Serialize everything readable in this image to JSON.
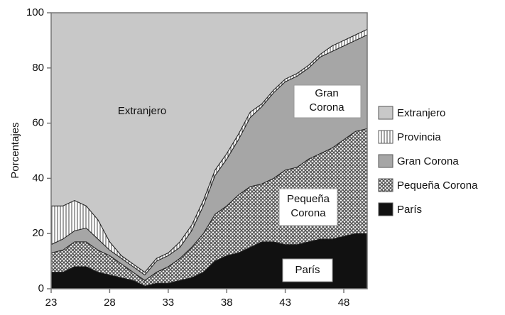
{
  "chart_data": {
    "type": "stacked-area",
    "ylabel": "Porcentajes",
    "xlim": [
      23,
      50
    ],
    "xticks": [
      23,
      28,
      33,
      38,
      43,
      48
    ],
    "ylim": [
      0,
      100
    ],
    "yticks": [
      0,
      20,
      40,
      60,
      80,
      100
    ],
    "x": [
      23,
      24,
      25,
      26,
      27,
      28,
      29,
      30,
      31,
      32,
      33,
      34,
      35,
      36,
      37,
      38,
      39,
      40,
      41,
      42,
      43,
      44,
      45,
      46,
      47,
      48,
      49,
      50
    ],
    "series": [
      {
        "name": "Extranjero",
        "color": "#c8c8c8",
        "pattern": "solid",
        "values": [
          70,
          70,
          68,
          70,
          75,
          83,
          88,
          91,
          94,
          89,
          87,
          83,
          77,
          68,
          57,
          51,
          44,
          36,
          33,
          28,
          24,
          22,
          19,
          15,
          12,
          10,
          8,
          6
        ]
      },
      {
        "name": "Provincia",
        "color": "#ffffff",
        "pattern": "vertical-lines",
        "values": [
          14,
          12,
          11,
          8,
          7,
          3,
          1,
          1,
          1,
          1,
          1,
          2,
          2,
          2,
          2,
          2,
          2,
          2,
          1,
          1,
          1,
          1,
          1,
          1,
          2,
          2,
          2,
          2
        ]
      },
      {
        "name": "Gran Corona",
        "color": "#a6a6a6",
        "pattern": "solid",
        "values": [
          3,
          4,
          4,
          5,
          4,
          2,
          2,
          2,
          2,
          4,
          4,
          4,
          6,
          10,
          14,
          17,
          20,
          25,
          28,
          31,
          32,
          33,
          33,
          35,
          35,
          34,
          33,
          34
        ]
      },
      {
        "name": "Pequeña Corona",
        "color": "#7a7a7a",
        "pattern": "crosshatch",
        "values": [
          7,
          8,
          9,
          9,
          8,
          7,
          5,
          3,
          2,
          4,
          6,
          8,
          11,
          14,
          17,
          18,
          21,
          22,
          21,
          23,
          27,
          28,
          30,
          31,
          33,
          35,
          37,
          38
        ]
      },
      {
        "name": "París",
        "color": "#111111",
        "pattern": "solid",
        "values": [
          6,
          6,
          8,
          8,
          6,
          5,
          4,
          3,
          1,
          2,
          2,
          3,
          4,
          6,
          10,
          12,
          13,
          15,
          17,
          17,
          16,
          16,
          17,
          18,
          18,
          19,
          20,
          20
        ]
      }
    ],
    "annotations": [
      [
        "Extranjero"
      ],
      [
        "Gran",
        "Corona"
      ],
      [
        "Pequeña",
        "Corona"
      ],
      [
        "París"
      ]
    ]
  }
}
